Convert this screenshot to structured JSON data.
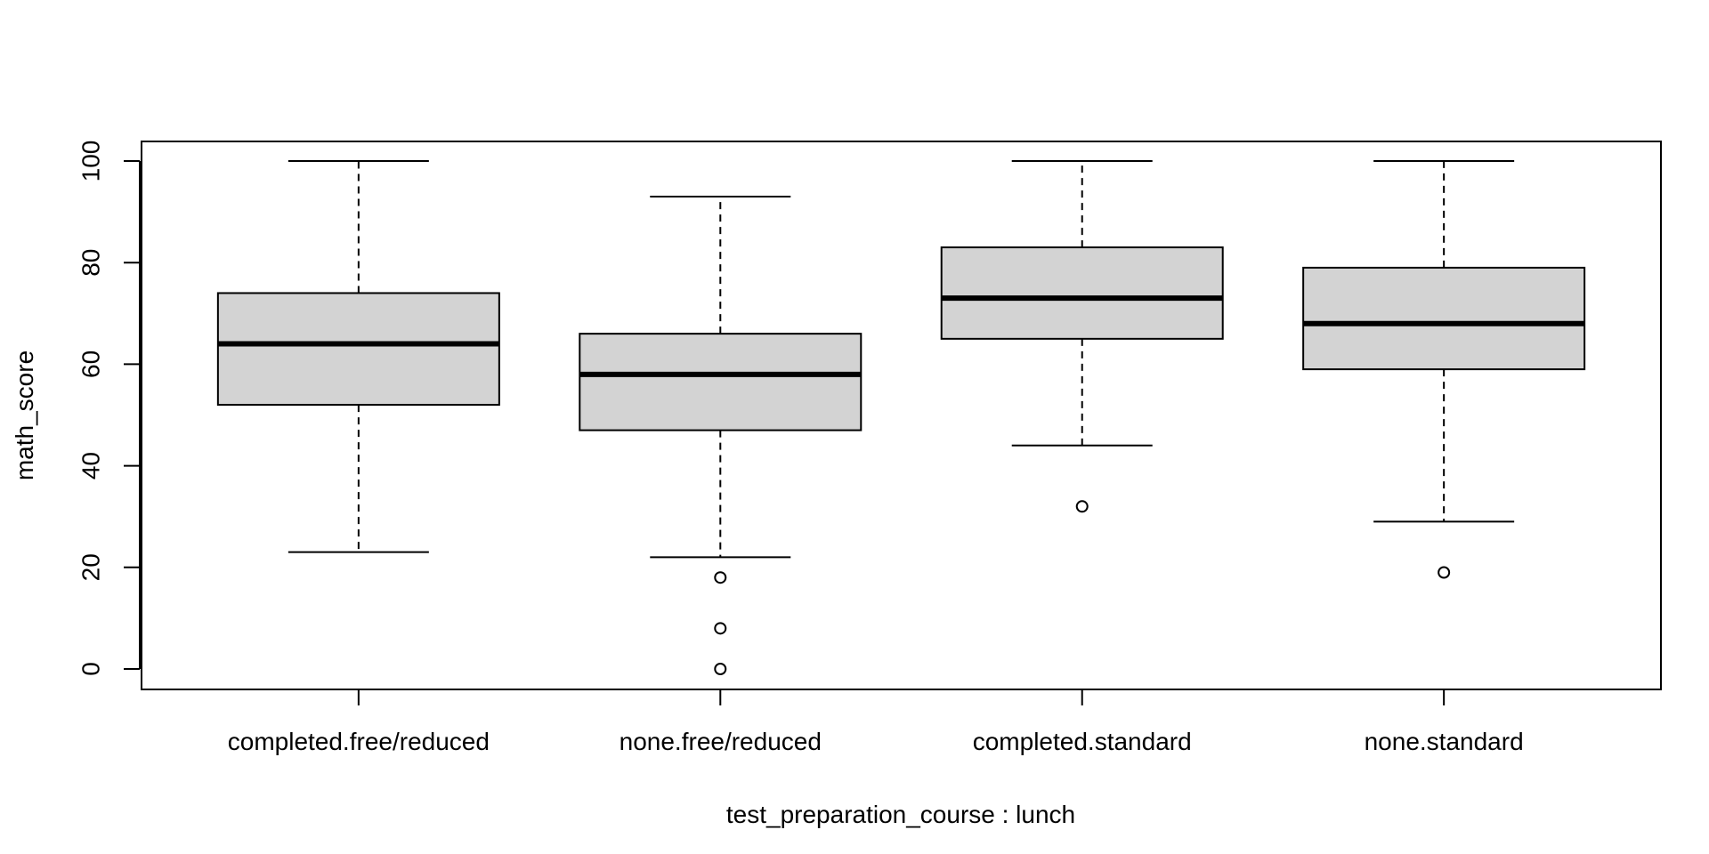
{
  "chart_data": {
    "type": "boxplot",
    "title": "",
    "xlabel": "test_preparation_course : lunch",
    "ylabel": "math_score",
    "ylim": [
      -4,
      104
    ],
    "yticks": [
      0,
      20,
      40,
      60,
      80,
      100
    ],
    "ytick_labels": [
      "0",
      "20",
      "40",
      "60",
      "80",
      "100"
    ],
    "grid": false,
    "legend": "none",
    "colors": {
      "box_fill": "#d3d3d3",
      "line": "#000000",
      "background": "#ffffff"
    },
    "categories": [
      "completed.free/reduced",
      "none.free/reduced",
      "completed.standard",
      "none.standard"
    ],
    "boxes": [
      {
        "category": "completed.free/reduced",
        "whisker_low": 23,
        "q1": 52,
        "median": 64,
        "q3": 74,
        "whisker_high": 100,
        "outliers": []
      },
      {
        "category": "none.free/reduced",
        "whisker_low": 22,
        "q1": 47,
        "median": 58,
        "q3": 66,
        "whisker_high": 93,
        "outliers": [
          18,
          8,
          0
        ]
      },
      {
        "category": "completed.standard",
        "whisker_low": 44,
        "q1": 65,
        "median": 73,
        "q3": 83,
        "whisker_high": 100,
        "outliers": [
          32
        ]
      },
      {
        "category": "none.standard",
        "whisker_low": 29,
        "q1": 59,
        "median": 68,
        "q3": 79,
        "whisker_high": 100,
        "outliers": [
          19
        ]
      }
    ]
  }
}
